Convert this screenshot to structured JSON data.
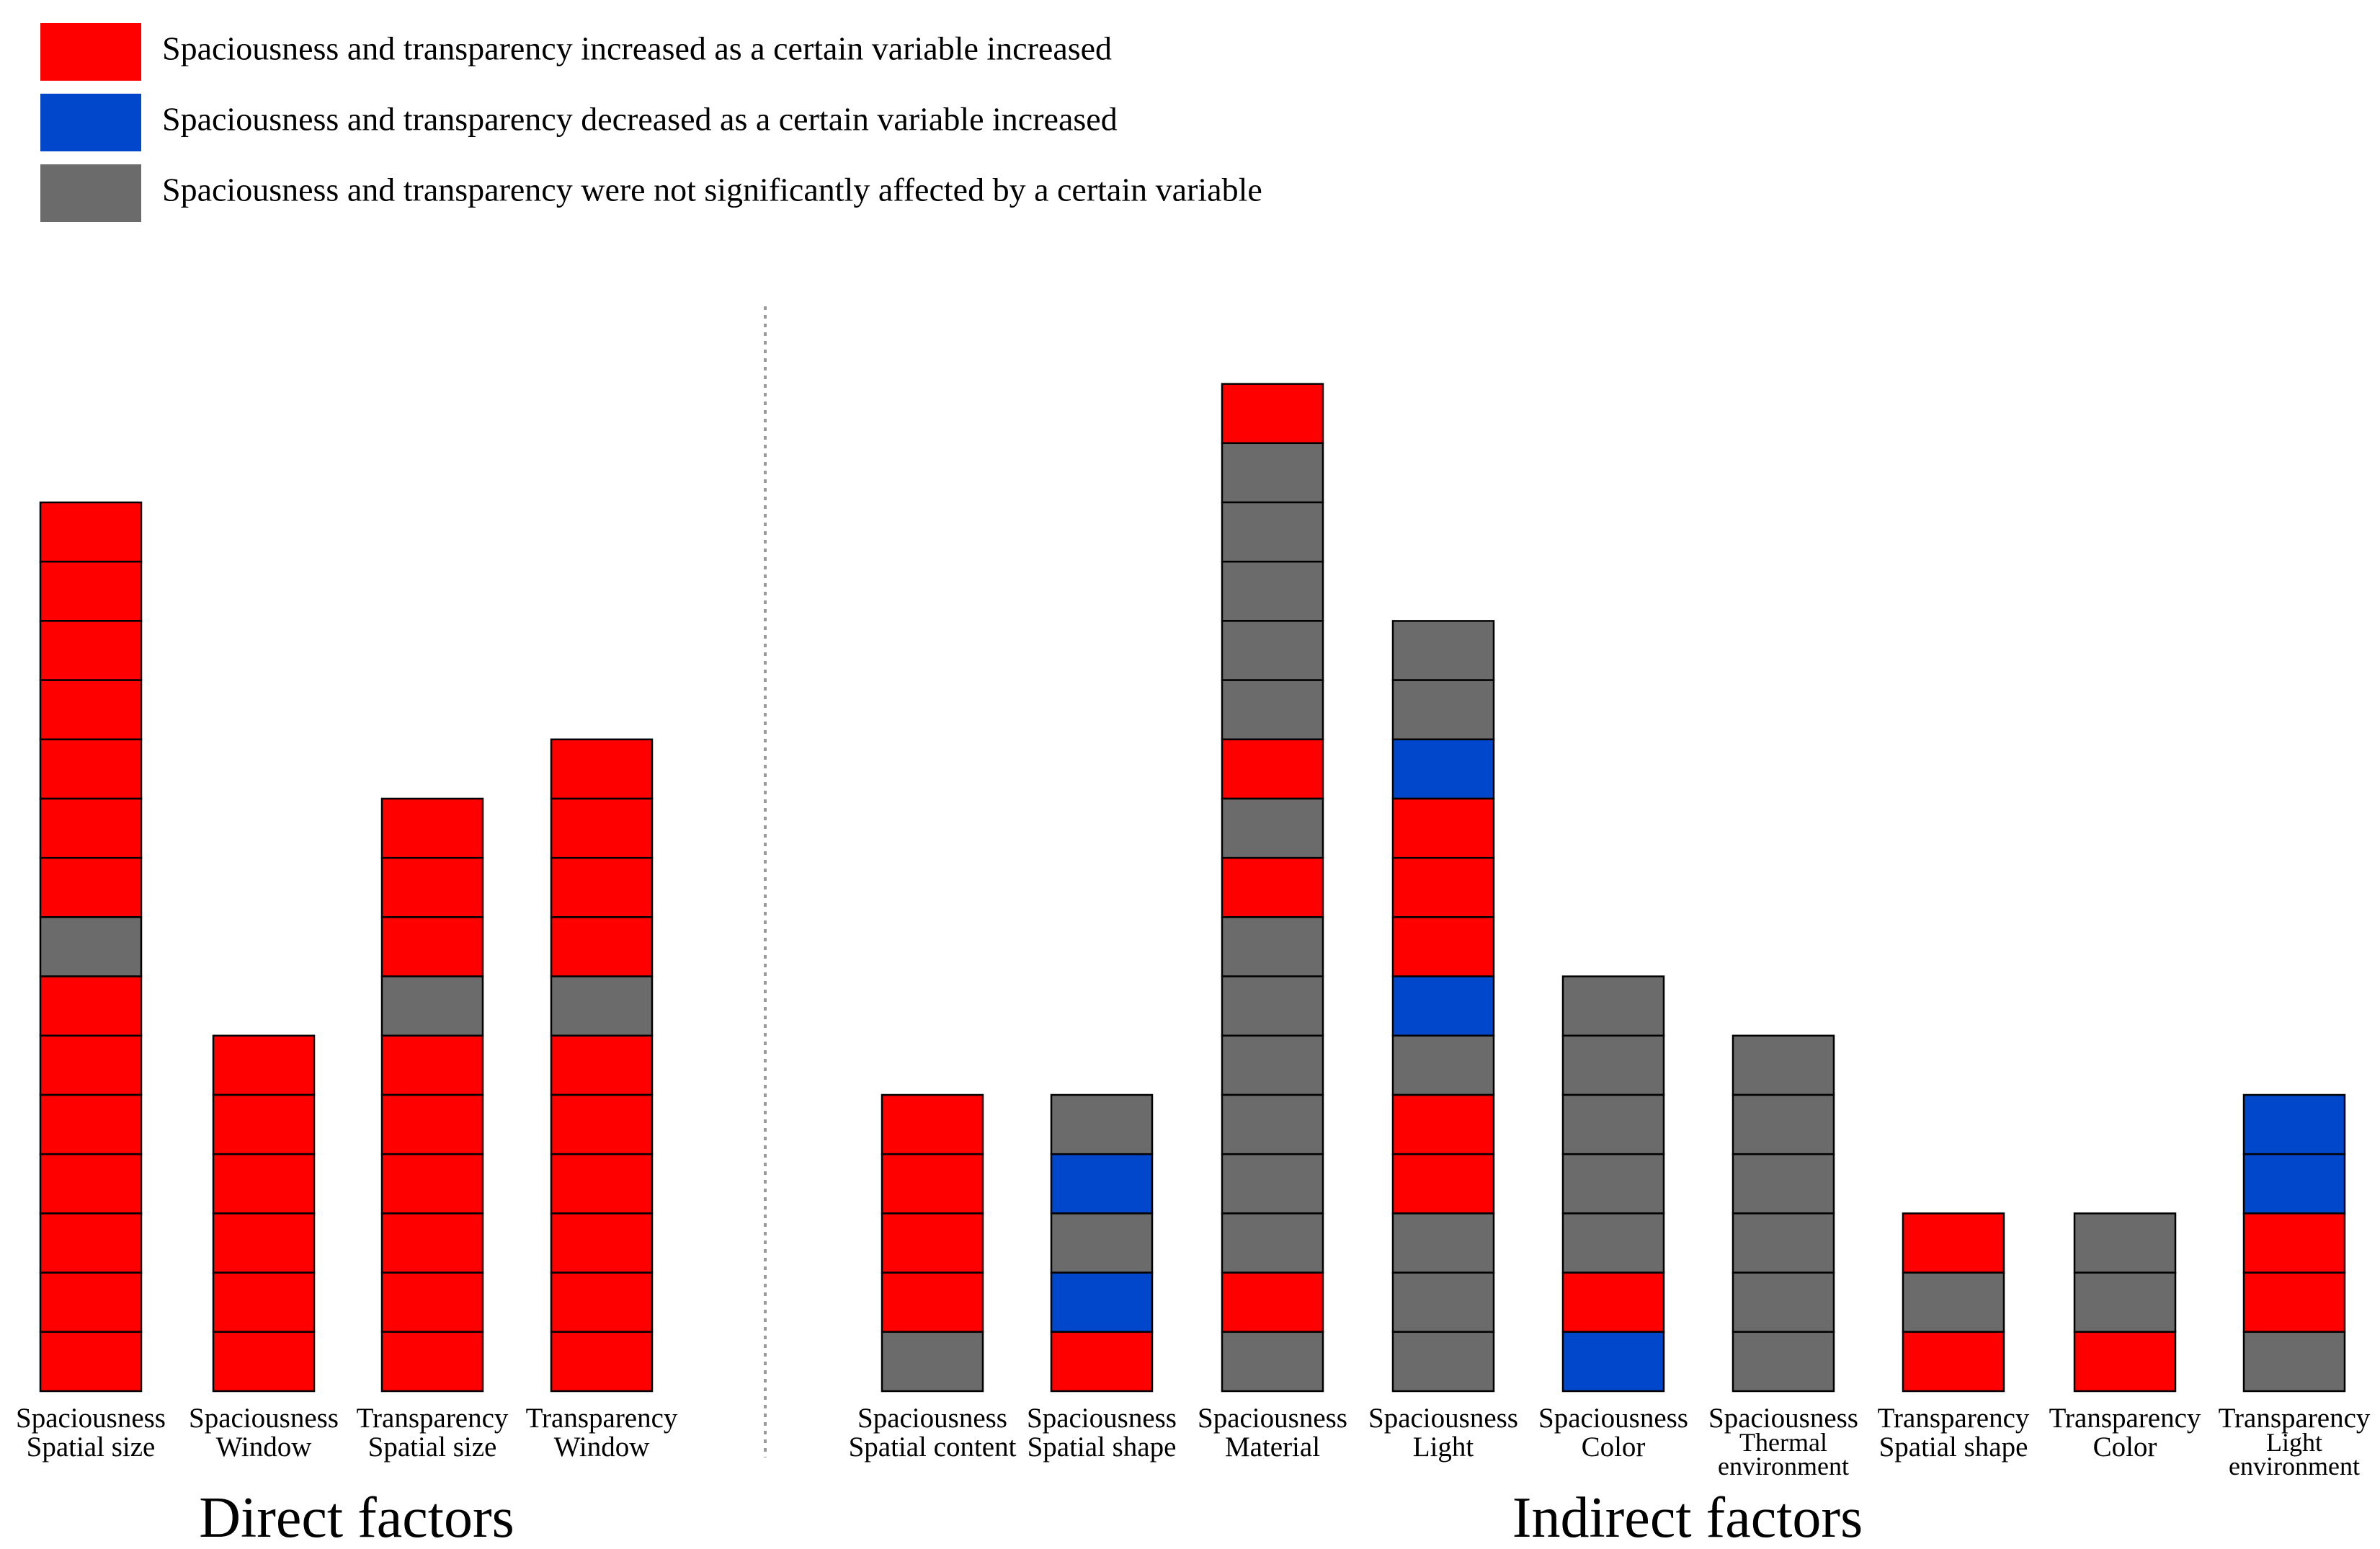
{
  "chart_data": {
    "type": "bar",
    "stacked": true,
    "unit_note": "",
    "colors": {
      "increased": "#ff0000",
      "decreased": "#0047cc",
      "not_significant": "#6b6b6b"
    },
    "legend": [
      {
        "key": "increased",
        "label": "Spaciousness and transparency increased as a certain variable increased"
      },
      {
        "key": "decreased",
        "label": "Spaciousness and transparency decreased as a certain variable increased"
      },
      {
        "key": "not_significant",
        "label": "Spaciousness and transparency were not significantly affected by a certain variable"
      }
    ],
    "legend_position": "top-left",
    "groups": [
      {
        "title": "Direct factors",
        "bars": [
          {
            "label": [
              "Spaciousness",
              "Spatial size"
            ],
            "segments": [
              "increased",
              "increased",
              "increased",
              "increased",
              "increased",
              "increased",
              "increased",
              "not_significant",
              "increased",
              "increased",
              "increased",
              "increased",
              "increased",
              "increased",
              "increased"
            ]
          },
          {
            "label": [
              "Spaciousness",
              "Window"
            ],
            "segments": [
              "increased",
              "increased",
              "increased",
              "increased",
              "increased",
              "increased"
            ]
          },
          {
            "label": [
              "Transparency",
              "Spatial size"
            ],
            "segments": [
              "increased",
              "increased",
              "increased",
              "not_significant",
              "increased",
              "increased",
              "increased",
              "increased",
              "increased",
              "increased"
            ]
          },
          {
            "label": [
              "Transparency",
              "Window"
            ],
            "segments": [
              "increased",
              "increased",
              "increased",
              "increased",
              "not_significant",
              "increased",
              "increased",
              "increased",
              "increased",
              "increased",
              "increased"
            ]
          }
        ]
      },
      {
        "title": "Indirect factors",
        "bars": [
          {
            "label": [
              "Spaciousness",
              "Spatial content"
            ],
            "segments": [
              "increased",
              "increased",
              "increased",
              "increased",
              "not_significant"
            ]
          },
          {
            "label": [
              "Spaciousness",
              "Spatial shape"
            ],
            "segments": [
              "not_significant",
              "decreased",
              "not_significant",
              "decreased",
              "increased"
            ]
          },
          {
            "label": [
              "Spaciousness",
              "Material"
            ],
            "segments": [
              "increased",
              "not_significant",
              "not_significant",
              "not_significant",
              "not_significant",
              "not_significant",
              "increased",
              "not_significant",
              "increased",
              "not_significant",
              "not_significant",
              "not_significant",
              "not_significant",
              "not_significant",
              "not_significant",
              "increased",
              "not_significant"
            ]
          },
          {
            "label": [
              "Spaciousness",
              "Light"
            ],
            "segments": [
              "not_significant",
              "not_significant",
              "decreased",
              "increased",
              "increased",
              "increased",
              "decreased",
              "not_significant",
              "increased",
              "increased",
              "not_significant",
              "not_significant",
              "not_significant"
            ]
          },
          {
            "label": [
              "Spaciousness",
              "Color"
            ],
            "segments": [
              "not_significant",
              "not_significant",
              "not_significant",
              "not_significant",
              "not_significant",
              "increased",
              "decreased"
            ]
          },
          {
            "label": [
              "Spaciousness",
              "Thermal",
              "environment"
            ],
            "segments": [
              "not_significant",
              "not_significant",
              "not_significant",
              "not_significant",
              "not_significant",
              "not_significant"
            ]
          },
          {
            "label": [
              "Transparency",
              "Spatial shape"
            ],
            "segments": [
              "increased",
              "not_significant",
              "increased"
            ]
          },
          {
            "label": [
              "Transparency",
              "Color"
            ],
            "segments": [
              "not_significant",
              "not_significant",
              "increased"
            ]
          },
          {
            "label": [
              "Transparency",
              "Light",
              "environment"
            ],
            "segments": [
              "decreased",
              "decreased",
              "increased",
              "increased",
              "not_significant"
            ]
          }
        ]
      }
    ]
  }
}
